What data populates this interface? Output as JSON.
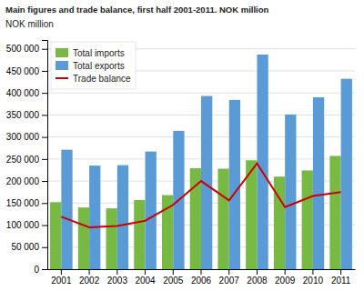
{
  "chart_data": {
    "type": "bar",
    "title": "Main figures and trade balance, first half 2001-2011. NOK million",
    "ylabel": "NOK million",
    "categories": [
      "2001",
      "2002",
      "2003",
      "2004",
      "2005",
      "2006",
      "2007",
      "2008",
      "2009",
      "2010",
      "2011"
    ],
    "series": [
      {
        "name": "Total imports",
        "type": "bar",
        "color": "#77b943",
        "values": [
          152000,
          140000,
          138000,
          157000,
          168000,
          229000,
          228000,
          247000,
          210000,
          224000,
          257000
        ]
      },
      {
        "name": "Total exports",
        "type": "bar",
        "color": "#5b9bd5",
        "values": [
          271000,
          235000,
          236000,
          267000,
          314000,
          393000,
          384000,
          487000,
          351000,
          390000,
          432000
        ]
      },
      {
        "name": "Trade balance",
        "type": "line",
        "color": "#cc0000",
        "values": [
          119000,
          95000,
          98000,
          110000,
          146000,
          200000,
          156000,
          240000,
          141000,
          166000,
          175000
        ]
      }
    ],
    "ylim": [
      0,
      520000
    ],
    "yticks": [
      0,
      {
        "value": 50000,
        "label": "50 000"
      },
      {
        "value": 100000,
        "label": "100 000"
      },
      {
        "value": 150000,
        "label": "150 000"
      },
      {
        "value": 200000,
        "label": "200 000"
      },
      {
        "value": 250000,
        "label": "250 000"
      },
      {
        "value": 300000,
        "label": "300 000"
      },
      {
        "value": 350000,
        "label": "350 000"
      },
      {
        "value": 400000,
        "label": "400 000"
      },
      {
        "value": 450000,
        "label": "450 000"
      },
      {
        "value": 500000,
        "label": "500 000"
      }
    ],
    "grid": true,
    "legend": "upper left"
  }
}
